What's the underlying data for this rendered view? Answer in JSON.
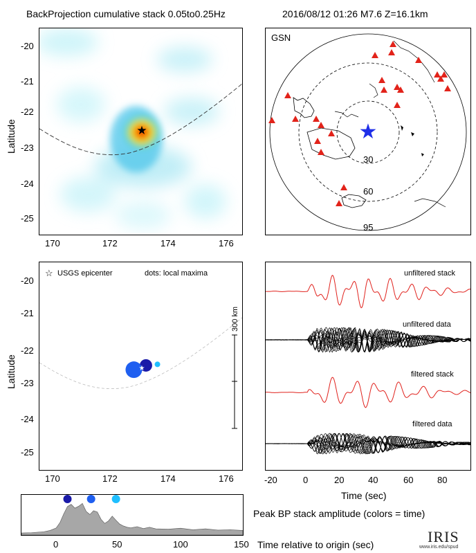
{
  "header": {
    "left_title": "BackProjection cumulative stack 0.05to0.25Hz",
    "right_title": "2016/08/12 01:26   M7.6   Z=16.1km"
  },
  "colors": {
    "stack_red": "#e0201b",
    "data_black": "#000000",
    "star_blue": "#1f2fe8",
    "station_red": "#e2231a"
  },
  "map_panel": {
    "ylabel": "Latitude",
    "lat_ticks": [
      "-20",
      "-21",
      "-22",
      "-23",
      "-24",
      "-25"
    ],
    "lon_ticks": [
      "170",
      "172",
      "174",
      "176"
    ]
  },
  "globe_panel": {
    "network_label": "GSN",
    "ring_labels": [
      "30",
      "60",
      "95"
    ]
  },
  "maxima_panel": {
    "ylabel": "Latitude",
    "legend_star": "USGS epicenter",
    "legend_dots": "dots: local maxima",
    "scale_label": "300 km",
    "lat_ticks": [
      "-20",
      "-21",
      "-22",
      "-23",
      "-24",
      "-25"
    ],
    "lon_ticks": [
      "170",
      "172",
      "174",
      "176"
    ]
  },
  "trace_panel": {
    "labels": [
      "unfiltered stack",
      "unfiltered data",
      "filtered stack",
      "filtered data"
    ],
    "time_ticks": [
      "-20",
      "0",
      "20",
      "40",
      "60",
      "80"
    ],
    "xlabel": "Time (sec)"
  },
  "amplitude_panel": {
    "caption": "Peak BP stack amplitude (colors = time)",
    "xlabel": "Time relative to origin (sec)",
    "time_ticks": [
      "0",
      "50",
      "100",
      "150"
    ]
  },
  "logo": {
    "text": "IRIS",
    "url_text": "www.iris.edu/spud"
  },
  "chart_data": {
    "type": "area",
    "title": "Peak BP stack amplitude (colors = time)",
    "xlabel": "Time relative to origin (sec)",
    "xlim": [
      -28,
      150
    ],
    "x": [
      -28,
      -20,
      -10,
      -5,
      0,
      3,
      6,
      9,
      12,
      15,
      18,
      21,
      24,
      27,
      30,
      33,
      36,
      39,
      42,
      45,
      48,
      51,
      54,
      57,
      60,
      65,
      70,
      75,
      80,
      90,
      100,
      110,
      120,
      130,
      140,
      150
    ],
    "values": [
      0.02,
      0.03,
      0.06,
      0.1,
      0.18,
      0.35,
      0.62,
      0.85,
      0.92,
      0.8,
      0.86,
      0.95,
      0.7,
      0.6,
      0.72,
      0.68,
      0.45,
      0.32,
      0.4,
      0.55,
      0.42,
      0.3,
      0.24,
      0.2,
      0.18,
      0.22,
      0.16,
      0.2,
      0.15,
      0.14,
      0.17,
      0.12,
      0.15,
      0.11,
      0.12,
      0.1
    ],
    "local_maxima": [
      {
        "time": 9,
        "lat": -22.48,
        "lon": 173.12,
        "color": "#1a1aa8"
      },
      {
        "time": 28,
        "lat": -22.6,
        "lon": 172.72,
        "color": "#1f5ff0"
      },
      {
        "time": 48,
        "lat": -22.45,
        "lon": 173.5,
        "color": "#1fbfff"
      }
    ],
    "epicenter": {
      "lat": -22.48,
      "lon": 173.12
    }
  }
}
